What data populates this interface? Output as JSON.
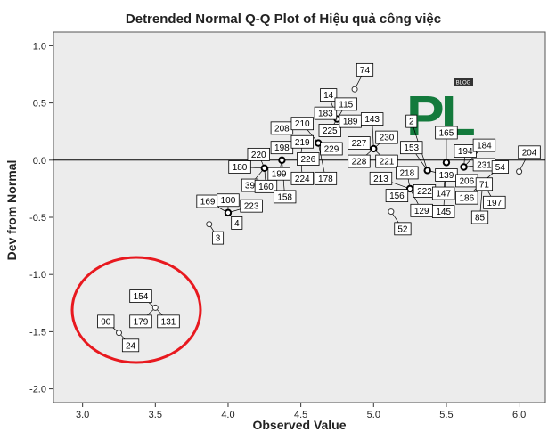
{
  "colors": {
    "plot_bg": "#ececec",
    "zero_line": "#000000",
    "highlight_ellipse": "#e8191f",
    "watermark_green": "#137a3c"
  },
  "watermark": {
    "text": "PL",
    "badge": "BLOG"
  },
  "chart_data": {
    "type": "scatter",
    "title": "Detrended Normal Q-Q Plot of Hiệu quả công việc",
    "xlabel": "Observed Value",
    "ylabel": "Dev from Normal",
    "xlim": [
      2.8,
      6.18
    ],
    "ylim": [
      -2.12,
      1.12
    ],
    "xticks": [
      3.0,
      3.5,
      4.0,
      4.5,
      5.0,
      5.5,
      6.0
    ],
    "xtick_labels": [
      "3.0",
      "3.5",
      "4.0",
      "4.5",
      "5.0",
      "5.5",
      "6.0"
    ],
    "yticks": [
      1.0,
      0.5,
      0.0,
      -0.5,
      -1.0,
      -1.5,
      -2.0
    ],
    "ytick_labels": [
      "1.0",
      "0.5",
      "0.0",
      "-0.5",
      "-1.0",
      "-1.5",
      "-2.0"
    ],
    "reference_line_y": 0,
    "grid": false,
    "points": [
      {
        "x": 3.25,
        "y": -1.51,
        "bold": false
      },
      {
        "x": 3.5,
        "y": -1.29,
        "bold": false
      },
      {
        "x": 3.87,
        "y": -0.56,
        "bold": false
      },
      {
        "x": 4.0,
        "y": -0.46,
        "bold": true
      },
      {
        "x": 4.25,
        "y": -0.07,
        "bold": true
      },
      {
        "x": 4.37,
        "y": 0.0,
        "bold": true
      },
      {
        "x": 4.5,
        "y": 0.03,
        "bold": true
      },
      {
        "x": 4.62,
        "y": 0.15,
        "bold": true
      },
      {
        "x": 4.75,
        "y": 0.36,
        "bold": true
      },
      {
        "x": 4.87,
        "y": 0.62,
        "bold": false
      },
      {
        "x": 5.0,
        "y": 0.1,
        "bold": true
      },
      {
        "x": 5.12,
        "y": -0.45,
        "bold": false
      },
      {
        "x": 5.25,
        "y": -0.25,
        "bold": true
      },
      {
        "x": 5.37,
        "y": -0.09,
        "bold": true
      },
      {
        "x": 5.5,
        "y": -0.02,
        "bold": true
      },
      {
        "x": 5.62,
        "y": -0.06,
        "bold": true
      },
      {
        "x": 5.75,
        "y": -0.19,
        "bold": true
      },
      {
        "x": 6.0,
        "y": -0.1,
        "bold": false
      }
    ],
    "case_labels": [
      {
        "text": "154",
        "x": 3.4,
        "y": -1.19,
        "px": 3.5,
        "py": -1.29
      },
      {
        "text": "90",
        "x": 3.16,
        "y": -1.41,
        "px": 3.25,
        "py": -1.51
      },
      {
        "text": "179",
        "x": 3.4,
        "y": -1.41,
        "px": 3.5,
        "py": -1.29
      },
      {
        "text": "131",
        "x": 3.59,
        "y": -1.41,
        "px": 3.5,
        "py": -1.29
      },
      {
        "text": "24",
        "x": 3.33,
        "y": -1.62,
        "px": 3.25,
        "py": -1.51
      },
      {
        "text": "169",
        "x": 3.86,
        "y": -0.36,
        "px": 4.0,
        "py": -0.46
      },
      {
        "text": "100",
        "x": 4.0,
        "y": -0.35,
        "px": 4.0,
        "py": -0.46
      },
      {
        "text": "223",
        "x": 4.16,
        "y": -0.4,
        "px": 4.0,
        "py": -0.46
      },
      {
        "text": "4",
        "x": 4.06,
        "y": -0.55,
        "px": 4.0,
        "py": -0.46
      },
      {
        "text": "3",
        "x": 3.93,
        "y": -0.68,
        "px": 3.87,
        "py": -0.56
      },
      {
        "text": "180",
        "x": 4.08,
        "y": -0.06,
        "px": 4.25,
        "py": -0.07
      },
      {
        "text": "220",
        "x": 4.21,
        "y": 0.05,
        "px": 4.25,
        "py": -0.07
      },
      {
        "text": "39",
        "x": 4.15,
        "y": -0.22,
        "px": 4.25,
        "py": -0.07
      },
      {
        "text": "160",
        "x": 4.26,
        "y": -0.23,
        "px": 4.25,
        "py": -0.07
      },
      {
        "text": "199",
        "x": 4.35,
        "y": -0.12,
        "px": 4.37,
        "py": 0.0
      },
      {
        "text": "158",
        "x": 4.39,
        "y": -0.32,
        "px": 4.37,
        "py": 0.0
      },
      {
        "text": "208",
        "x": 4.37,
        "y": 0.28,
        "px": 4.37,
        "py": 0.0
      },
      {
        "text": "198",
        "x": 4.37,
        "y": 0.11,
        "px": 4.37,
        "py": 0.0
      },
      {
        "text": "224",
        "x": 4.51,
        "y": -0.16,
        "px": 4.5,
        "py": 0.03
      },
      {
        "text": "226",
        "x": 4.55,
        "y": 0.01,
        "px": 4.5,
        "py": 0.03
      },
      {
        "text": "219",
        "x": 4.51,
        "y": 0.16,
        "px": 4.5,
        "py": 0.03
      },
      {
        "text": "210",
        "x": 4.51,
        "y": 0.32,
        "px": 4.62,
        "py": 0.15
      },
      {
        "text": "178",
        "x": 4.67,
        "y": -0.16,
        "px": 4.62,
        "py": 0.15
      },
      {
        "text": "229",
        "x": 4.71,
        "y": 0.1,
        "px": 4.62,
        "py": 0.15
      },
      {
        "text": "225",
        "x": 4.7,
        "y": 0.26,
        "px": 4.75,
        "py": 0.36
      },
      {
        "text": "183",
        "x": 4.67,
        "y": 0.41,
        "px": 4.75,
        "py": 0.36
      },
      {
        "text": "189",
        "x": 4.84,
        "y": 0.34,
        "px": 4.75,
        "py": 0.36
      },
      {
        "text": "14",
        "x": 4.69,
        "y": 0.57,
        "px": 4.75,
        "py": 0.36
      },
      {
        "text": "115",
        "x": 4.81,
        "y": 0.49,
        "px": 4.75,
        "py": 0.36
      },
      {
        "text": "74",
        "x": 4.94,
        "y": 0.79,
        "px": 4.87,
        "py": 0.62
      },
      {
        "text": "143",
        "x": 4.99,
        "y": 0.36,
        "px": 5.0,
        "py": 0.1
      },
      {
        "text": "230",
        "x": 5.09,
        "y": 0.2,
        "px": 5.0,
        "py": 0.1
      },
      {
        "text": "227",
        "x": 4.9,
        "y": 0.15,
        "px": 5.0,
        "py": 0.1
      },
      {
        "text": "228",
        "x": 4.9,
        "y": -0.01,
        "px": 5.0,
        "py": 0.1
      },
      {
        "text": "221",
        "x": 5.09,
        "y": -0.01,
        "px": 5.0,
        "py": 0.1
      },
      {
        "text": "213",
        "x": 5.05,
        "y": -0.16,
        "px": 5.25,
        "py": -0.25
      },
      {
        "text": "156",
        "x": 5.16,
        "y": -0.31,
        "px": 5.25,
        "py": -0.25
      },
      {
        "text": "52",
        "x": 5.2,
        "y": -0.6,
        "px": 5.12,
        "py": -0.45
      },
      {
        "text": "218",
        "x": 5.23,
        "y": -0.11,
        "px": 5.25,
        "py": -0.25
      },
      {
        "text": "153",
        "x": 5.26,
        "y": 0.11,
        "px": 5.37,
        "py": -0.09
      },
      {
        "text": "222",
        "x": 5.35,
        "y": -0.27,
        "px": 5.25,
        "py": -0.25
      },
      {
        "text": "129",
        "x": 5.33,
        "y": -0.44,
        "px": 5.25,
        "py": -0.25
      },
      {
        "text": "139",
        "x": 5.5,
        "y": -0.13,
        "px": 5.37,
        "py": -0.09
      },
      {
        "text": "147",
        "x": 5.48,
        "y": -0.29,
        "px": 5.5,
        "py": -0.02
      },
      {
        "text": "145",
        "x": 5.48,
        "y": -0.45,
        "px": 5.5,
        "py": -0.02
      },
      {
        "text": "2",
        "x": 5.26,
        "y": 0.34,
        "px": 5.37,
        "py": -0.09
      },
      {
        "text": "165",
        "x": 5.5,
        "y": 0.24,
        "px": 5.5,
        "py": -0.02
      },
      {
        "text": "194",
        "x": 5.63,
        "y": 0.08,
        "px": 5.62,
        "py": -0.06
      },
      {
        "text": "184",
        "x": 5.76,
        "y": 0.13,
        "px": 5.62,
        "py": -0.06
      },
      {
        "text": "231",
        "x": 5.76,
        "y": -0.04,
        "px": 5.62,
        "py": -0.06
      },
      {
        "text": "54",
        "x": 5.87,
        "y": -0.06,
        "px": 5.75,
        "py": -0.19
      },
      {
        "text": "206",
        "x": 5.64,
        "y": -0.18,
        "px": 5.75,
        "py": -0.19
      },
      {
        "text": "186",
        "x": 5.64,
        "y": -0.33,
        "px": 5.75,
        "py": -0.19
      },
      {
        "text": "71",
        "x": 5.76,
        "y": -0.21,
        "px": 5.75,
        "py": -0.19
      },
      {
        "text": "197",
        "x": 5.83,
        "y": -0.37,
        "px": 5.75,
        "py": -0.19
      },
      {
        "text": "85",
        "x": 5.73,
        "y": -0.5,
        "px": 5.75,
        "py": -0.19
      },
      {
        "text": "204",
        "x": 6.07,
        "y": 0.07,
        "px": 6.0,
        "py": -0.1
      }
    ]
  }
}
